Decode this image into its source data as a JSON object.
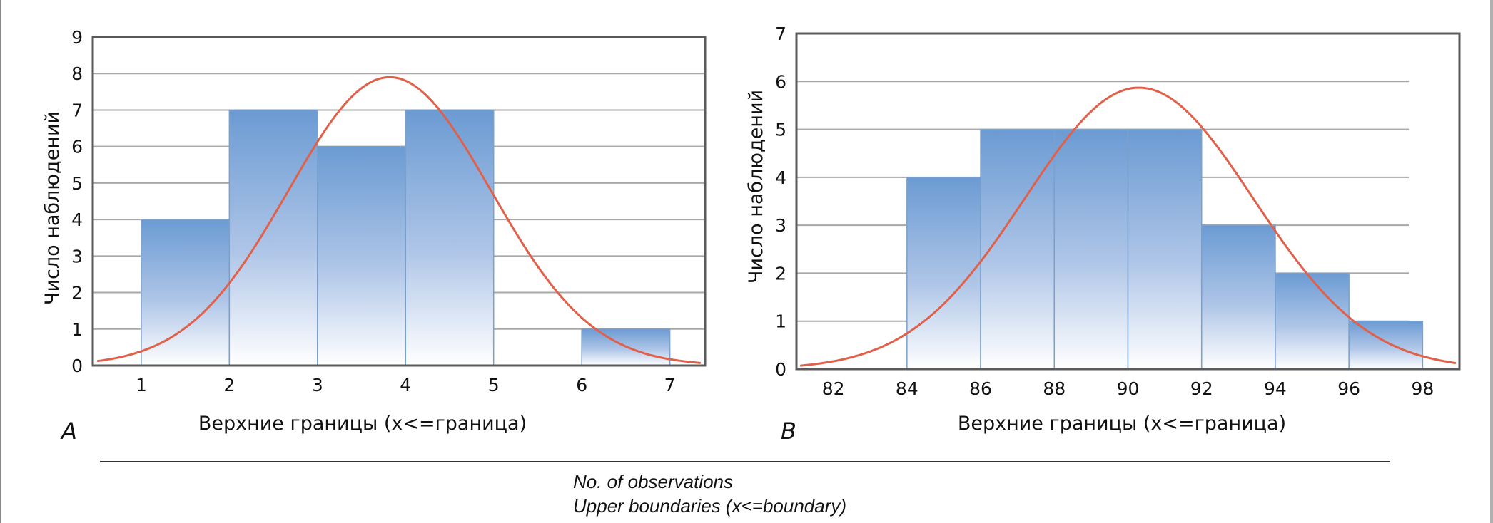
{
  "chart_data": [
    {
      "panel": "A",
      "type": "bar",
      "subtype": "histogram",
      "ylabel": "Число наблюдений",
      "xlabel": "Верхние границы (x<=граница)",
      "xlim": [
        0.45,
        7.4
      ],
      "ylim": [
        0,
        9
      ],
      "xticks": [
        1,
        2,
        3,
        4,
        5,
        6,
        7
      ],
      "yticks": [
        0,
        1,
        2,
        3,
        4,
        5,
        6,
        7,
        8,
        9
      ],
      "grid": true,
      "bins": [
        {
          "from": 1,
          "to": 2,
          "value": 4
        },
        {
          "from": 2,
          "to": 3,
          "value": 7
        },
        {
          "from": 3,
          "to": 4,
          "value": 6
        },
        {
          "from": 4,
          "to": 5,
          "value": 7
        },
        {
          "from": 5,
          "to": 6,
          "value": 0
        },
        {
          "from": 6,
          "to": 7,
          "value": 1
        }
      ],
      "normal_curve": {
        "mean": 3.82,
        "peak": 7.9,
        "sd": 1.15,
        "x_range": [
          0.5,
          7.35
        ]
      },
      "bar_color": "#6d9bd2",
      "curve_color": "#e0604a"
    },
    {
      "panel": "B",
      "type": "bar",
      "subtype": "histogram",
      "ylabel": "Число наблюдений",
      "xlabel": "Верхние границы (x<=граница)",
      "xlim": [
        81.0,
        99.0
      ],
      "ylim": [
        0,
        7
      ],
      "xticks": [
        82,
        84,
        86,
        88,
        90,
        92,
        94,
        96,
        98
      ],
      "yticks": [
        0,
        1,
        2,
        3,
        4,
        5,
        6,
        7
      ],
      "grid": true,
      "bins": [
        {
          "from": 84,
          "to": 86,
          "value": 4
        },
        {
          "from": 86,
          "to": 88,
          "value": 5
        },
        {
          "from": 88,
          "to": 90,
          "value": 5
        },
        {
          "from": 90,
          "to": 92,
          "value": 5
        },
        {
          "from": 92,
          "to": 94,
          "value": 3
        },
        {
          "from": 94,
          "to": 96,
          "value": 2
        },
        {
          "from": 96,
          "to": 98,
          "value": 1
        }
      ],
      "normal_curve": {
        "mean": 90.3,
        "peak": 5.87,
        "sd": 3.1,
        "x_range": [
          81.1,
          98.9
        ]
      },
      "bar_color": "#6d9bd2",
      "curve_color": "#e0604a"
    }
  ],
  "captions": {
    "panel_a": "A",
    "panel_b": "B",
    "english_ylabel": "No. of observations",
    "english_xlabel": "Upper boundaries (x<=boundary)"
  }
}
